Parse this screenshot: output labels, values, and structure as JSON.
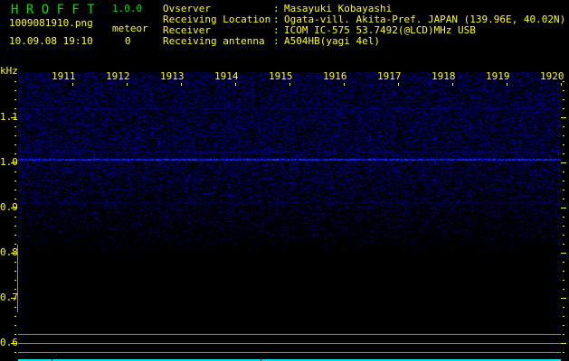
{
  "app": {
    "title_letters": "H R O F F T",
    "version": "1.0.0"
  },
  "file": {
    "name": "1009081910.png",
    "datetime": "10.09.08 19:10"
  },
  "meteor": {
    "label": "meteor",
    "count": "0"
  },
  "station": [
    {
      "label": "Ovserver",
      "value": "Masayuki Kobayashi"
    },
    {
      "label": "Receiving Location",
      "value": "Ogata-vill. Akita-Pref. JAPAN (139.96E, 40.02N)"
    },
    {
      "label": "Receiver",
      "value": "ICOM IC-575 53.7492(@LCD)MHz USB"
    },
    {
      "label": "Receiving antenna",
      "value": "A504HB(yagi 4el)"
    }
  ],
  "spectrogram": {
    "unit": "kHz",
    "freq_labels": [
      "1.1",
      "1.0",
      "0.9",
      "0.8",
      "0.7",
      "0.6"
    ],
    "time_labels": [
      "1911",
      "1912",
      "1913",
      "1914",
      "1915",
      "1916",
      "1917",
      "1918",
      "1919",
      "1920"
    ],
    "colors": {
      "text": "#ffff00",
      "title": "#00e000",
      "noise": "#0000ff",
      "status_bar": "#00e0e0",
      "guide": "#8a8a8a"
    }
  }
}
